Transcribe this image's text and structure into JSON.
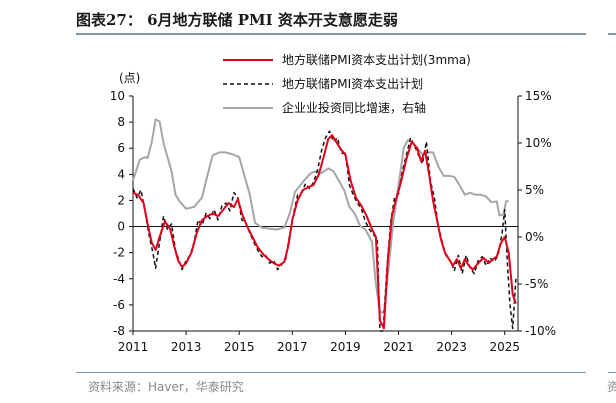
{
  "title": "图表27： 6月地方联储 PMI 资本开支意愿走弱",
  "source": "资料来源：Haver，华泰研究",
  "right_edge_glyph": "资",
  "chart_data": {
    "type": "line",
    "ylabel_left": "(点)",
    "left_axis": {
      "min": -8,
      "max": 10,
      "ticks": [
        -8,
        -6,
        -4,
        -2,
        0,
        2,
        4,
        6,
        8,
        10
      ]
    },
    "right_axis": {
      "min": -10,
      "max": 15,
      "ticks": [
        "-10%",
        "-5%",
        "0%",
        "5%",
        "10%",
        "15%"
      ],
      "tick_values": [
        -10,
        -5,
        0,
        5,
        10,
        15
      ]
    },
    "x_axis": {
      "min": 2011,
      "max": 2025.5,
      "ticks": [
        "2011",
        "2013",
        "2015",
        "2017",
        "2019",
        "2021",
        "2023",
        "2025"
      ],
      "tick_values": [
        2011,
        2013,
        2015,
        2017,
        2019,
        2021,
        2023,
        2025
      ]
    },
    "legend": [
      {
        "label": "地方联储PMI资本支出计划(3mma)",
        "color": "#e0001b",
        "style": "solid"
      },
      {
        "label": "地方联储PMI资本支出计划",
        "color": "#111111",
        "style": "dashed"
      },
      {
        "label": "企业业投资同比增速，右轴",
        "color": "#a6a6a6",
        "style": "solid"
      }
    ],
    "series": [
      {
        "name": "地方联储PMI资本支出计划(3mma)",
        "axis": "left",
        "points": [
          [
            2011.0,
            2.6
          ],
          [
            2011.2,
            2.4
          ],
          [
            2011.4,
            1.8
          ],
          [
            2011.55,
            0.2
          ],
          [
            2011.7,
            -1.2
          ],
          [
            2011.85,
            -1.8
          ],
          [
            2012.0,
            -0.8
          ],
          [
            2012.2,
            0.4
          ],
          [
            2012.4,
            -0.2
          ],
          [
            2012.55,
            -1.5
          ],
          [
            2012.7,
            -2.6
          ],
          [
            2012.85,
            -3.1
          ],
          [
            2013.0,
            -2.8
          ],
          [
            2013.2,
            -2.0
          ],
          [
            2013.4,
            -0.5
          ],
          [
            2013.6,
            0.5
          ],
          [
            2013.8,
            0.8
          ],
          [
            2014.0,
            1.0
          ],
          [
            2014.2,
            0.8
          ],
          [
            2014.4,
            1.3
          ],
          [
            2014.6,
            1.8
          ],
          [
            2014.8,
            1.5
          ],
          [
            2014.95,
            2.1
          ],
          [
            2015.1,
            1.0
          ],
          [
            2015.3,
            0.0
          ],
          [
            2015.5,
            -0.8
          ],
          [
            2015.7,
            -1.6
          ],
          [
            2015.9,
            -2.1
          ],
          [
            2016.1,
            -2.5
          ],
          [
            2016.3,
            -2.8
          ],
          [
            2016.5,
            -3.0
          ],
          [
            2016.7,
            -2.7
          ],
          [
            2016.85,
            -1.5
          ],
          [
            2017.0,
            0.5
          ],
          [
            2017.2,
            2.0
          ],
          [
            2017.4,
            2.8
          ],
          [
            2017.6,
            3.0
          ],
          [
            2017.8,
            3.2
          ],
          [
            2018.0,
            4.0
          ],
          [
            2018.2,
            5.5
          ],
          [
            2018.35,
            6.7
          ],
          [
            2018.5,
            7.0
          ],
          [
            2018.65,
            6.5
          ],
          [
            2018.8,
            6.0
          ],
          [
            2019.0,
            5.5
          ],
          [
            2019.2,
            3.5
          ],
          [
            2019.4,
            2.2
          ],
          [
            2019.6,
            1.6
          ],
          [
            2019.8,
            0.8
          ],
          [
            2020.0,
            -0.2
          ],
          [
            2020.15,
            -0.8
          ],
          [
            2020.3,
            -7.2
          ],
          [
            2020.45,
            -7.8
          ],
          [
            2020.6,
            -2.5
          ],
          [
            2020.75,
            0.8
          ],
          [
            2020.9,
            2.0
          ],
          [
            2021.1,
            3.5
          ],
          [
            2021.3,
            5.2
          ],
          [
            2021.5,
            6.5
          ],
          [
            2021.7,
            6.0
          ],
          [
            2021.85,
            5.0
          ],
          [
            2022.0,
            5.8
          ],
          [
            2022.15,
            4.0
          ],
          [
            2022.3,
            2.0
          ],
          [
            2022.45,
            0.5
          ],
          [
            2022.6,
            -1.0
          ],
          [
            2022.75,
            -2.0
          ],
          [
            2022.9,
            -2.5
          ],
          [
            2023.05,
            -3.0
          ],
          [
            2023.2,
            -2.5
          ],
          [
            2023.35,
            -3.2
          ],
          [
            2023.5,
            -2.5
          ],
          [
            2023.65,
            -3.0
          ],
          [
            2023.8,
            -3.3
          ],
          [
            2024.0,
            -2.8
          ],
          [
            2024.2,
            -2.4
          ],
          [
            2024.4,
            -2.8
          ],
          [
            2024.55,
            -2.5
          ],
          [
            2024.7,
            -2.3
          ],
          [
            2024.85,
            -1.3
          ],
          [
            2025.0,
            -0.8
          ],
          [
            2025.15,
            -2.0
          ],
          [
            2025.3,
            -5.2
          ],
          [
            2025.42,
            -5.9
          ]
        ]
      },
      {
        "name": "地方联储PMI资本支出计划",
        "axis": "left",
        "points": [
          [
            2011.0,
            2.9
          ],
          [
            2011.15,
            2.2
          ],
          [
            2011.3,
            2.8
          ],
          [
            2011.45,
            1.2
          ],
          [
            2011.6,
            -0.6
          ],
          [
            2011.75,
            -2.0
          ],
          [
            2011.85,
            -3.2
          ],
          [
            2012.0,
            -1.2
          ],
          [
            2012.15,
            0.8
          ],
          [
            2012.3,
            -0.2
          ],
          [
            2012.45,
            0.2
          ],
          [
            2012.6,
            -1.8
          ],
          [
            2012.75,
            -2.7
          ],
          [
            2012.85,
            -3.3
          ],
          [
            2013.0,
            -2.6
          ],
          [
            2013.15,
            -2.2
          ],
          [
            2013.3,
            -1.2
          ],
          [
            2013.45,
            0.5
          ],
          [
            2013.6,
            0.1
          ],
          [
            2013.75,
            1.0
          ],
          [
            2013.9,
            0.6
          ],
          [
            2014.05,
            1.3
          ],
          [
            2014.2,
            0.5
          ],
          [
            2014.35,
            1.6
          ],
          [
            2014.5,
            1.8
          ],
          [
            2014.65,
            1.2
          ],
          [
            2014.8,
            2.6
          ],
          [
            2014.95,
            2.2
          ],
          [
            2015.1,
            0.5
          ],
          [
            2015.25,
            0.3
          ],
          [
            2015.4,
            -0.5
          ],
          [
            2015.55,
            -1.2
          ],
          [
            2015.7,
            -1.8
          ],
          [
            2015.85,
            -2.3
          ],
          [
            2016.0,
            -2.2
          ],
          [
            2016.15,
            -2.8
          ],
          [
            2016.3,
            -2.6
          ],
          [
            2016.45,
            -3.3
          ],
          [
            2016.6,
            -2.9
          ],
          [
            2016.75,
            -2.5
          ],
          [
            2016.9,
            -0.6
          ],
          [
            2017.05,
            1.0
          ],
          [
            2017.2,
            2.4
          ],
          [
            2017.35,
            2.6
          ],
          [
            2017.5,
            3.3
          ],
          [
            2017.65,
            2.9
          ],
          [
            2017.8,
            3.4
          ],
          [
            2017.95,
            4.3
          ],
          [
            2018.1,
            5.8
          ],
          [
            2018.25,
            6.8
          ],
          [
            2018.4,
            7.3
          ],
          [
            2018.55,
            6.5
          ],
          [
            2018.7,
            6.8
          ],
          [
            2018.85,
            5.6
          ],
          [
            2019.0,
            5.6
          ],
          [
            2019.15,
            3.2
          ],
          [
            2019.3,
            2.4
          ],
          [
            2019.45,
            1.8
          ],
          [
            2019.6,
            1.4
          ],
          [
            2019.75,
            0.4
          ],
          [
            2019.9,
            -0.2
          ],
          [
            2020.05,
            -0.6
          ],
          [
            2020.2,
            -1.0
          ],
          [
            2020.3,
            -8.0
          ],
          [
            2020.42,
            -8.0
          ],
          [
            2020.55,
            -3.5
          ],
          [
            2020.7,
            0.3
          ],
          [
            2020.85,
            2.2
          ],
          [
            2021.0,
            2.5
          ],
          [
            2021.15,
            4.3
          ],
          [
            2021.3,
            5.5
          ],
          [
            2021.45,
            6.8
          ],
          [
            2021.6,
            6.2
          ],
          [
            2021.75,
            5.5
          ],
          [
            2021.9,
            4.8
          ],
          [
            2022.05,
            6.5
          ],
          [
            2022.2,
            3.5
          ],
          [
            2022.35,
            2.2
          ],
          [
            2022.5,
            0.0
          ],
          [
            2022.65,
            -1.2
          ],
          [
            2022.8,
            -2.3
          ],
          [
            2022.95,
            -2.6
          ],
          [
            2023.1,
            -3.4
          ],
          [
            2023.25,
            -2.2
          ],
          [
            2023.4,
            -3.6
          ],
          [
            2023.55,
            -2.2
          ],
          [
            2023.7,
            -3.2
          ],
          [
            2023.85,
            -3.6
          ],
          [
            2024.0,
            -2.6
          ],
          [
            2024.15,
            -2.3
          ],
          [
            2024.3,
            -3.0
          ],
          [
            2024.45,
            -2.4
          ],
          [
            2024.6,
            -2.7
          ],
          [
            2024.75,
            -2.2
          ],
          [
            2024.9,
            -0.5
          ],
          [
            2025.0,
            1.3
          ],
          [
            2025.1,
            -2.8
          ],
          [
            2025.2,
            -6.0
          ],
          [
            2025.3,
            -7.8
          ],
          [
            2025.42,
            -4.0
          ]
        ]
      },
      {
        "name": "企业业投资同比增速，右轴",
        "axis": "right",
        "points": [
          [
            2011.0,
            6.0
          ],
          [
            2011.25,
            8.2
          ],
          [
            2011.45,
            8.5
          ],
          [
            2011.55,
            8.4
          ],
          [
            2011.7,
            10.0
          ],
          [
            2011.85,
            12.5
          ],
          [
            2012.0,
            12.3
          ],
          [
            2012.15,
            10.0
          ],
          [
            2012.3,
            8.5
          ],
          [
            2012.45,
            7.0
          ],
          [
            2012.6,
            4.5
          ],
          [
            2012.75,
            3.8
          ],
          [
            2013.0,
            3.0
          ],
          [
            2013.3,
            3.2
          ],
          [
            2013.6,
            4.2
          ],
          [
            2013.8,
            6.5
          ],
          [
            2014.0,
            8.7
          ],
          [
            2014.25,
            9.0
          ],
          [
            2014.5,
            9.0
          ],
          [
            2014.75,
            8.8
          ],
          [
            2015.0,
            8.5
          ],
          [
            2015.2,
            6.5
          ],
          [
            2015.4,
            4.5
          ],
          [
            2015.6,
            1.5
          ],
          [
            2015.85,
            1.0
          ],
          [
            2016.1,
            0.9
          ],
          [
            2016.4,
            0.8
          ],
          [
            2016.7,
            1.0
          ],
          [
            2016.9,
            2.5
          ],
          [
            2017.1,
            4.8
          ],
          [
            2017.3,
            5.5
          ],
          [
            2017.5,
            6.2
          ],
          [
            2017.7,
            6.8
          ],
          [
            2017.9,
            7.0
          ],
          [
            2018.1,
            6.8
          ],
          [
            2018.35,
            7.3
          ],
          [
            2018.55,
            7.0
          ],
          [
            2018.75,
            6.0
          ],
          [
            2018.95,
            5.0
          ],
          [
            2019.15,
            3.2
          ],
          [
            2019.35,
            2.5
          ],
          [
            2019.55,
            1.2
          ],
          [
            2019.75,
            0.8
          ],
          [
            2020.0,
            -0.5
          ],
          [
            2020.15,
            -5.0
          ],
          [
            2020.3,
            -8.0
          ],
          [
            2020.45,
            -8.0
          ],
          [
            2020.6,
            -4.0
          ],
          [
            2020.8,
            1.5
          ],
          [
            2021.0,
            5.5
          ],
          [
            2021.2,
            9.5
          ],
          [
            2021.35,
            10.3
          ],
          [
            2021.5,
            10.1
          ],
          [
            2021.7,
            9.5
          ],
          [
            2021.9,
            8.8
          ],
          [
            2022.1,
            9.0
          ],
          [
            2022.3,
            9.0
          ],
          [
            2022.5,
            7.5
          ],
          [
            2022.7,
            6.5
          ],
          [
            2022.9,
            6.5
          ],
          [
            2023.1,
            6.4
          ],
          [
            2023.3,
            5.5
          ],
          [
            2023.5,
            4.5
          ],
          [
            2023.7,
            4.7
          ],
          [
            2023.9,
            4.5
          ],
          [
            2024.1,
            4.5
          ],
          [
            2024.3,
            4.3
          ],
          [
            2024.5,
            3.7
          ],
          [
            2024.7,
            3.8
          ],
          [
            2024.8,
            2.3
          ],
          [
            2024.95,
            2.4
          ],
          [
            2025.05,
            3.8
          ],
          [
            2025.15,
            3.8
          ]
        ]
      }
    ],
    "reference_line": {
      "axis": "left",
      "value": 0
    }
  }
}
